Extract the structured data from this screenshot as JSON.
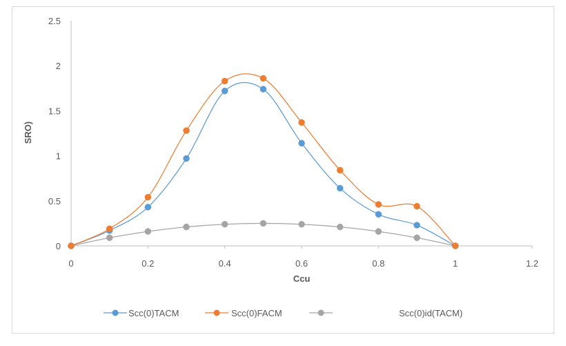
{
  "chart_data": {
    "type": "scatter",
    "title": "",
    "xlabel": "Ccu",
    "ylabel": "SRO)",
    "xlim": [
      0,
      1.2
    ],
    "ylim": [
      0,
      2.5
    ],
    "xticks": [
      "0",
      "0.2",
      "0.4",
      "0.6",
      "0.8",
      "1",
      "1.2"
    ],
    "yticks": [
      "0",
      "0.5",
      "1",
      "1.5",
      "2",
      "2.5"
    ],
    "grid": false,
    "legend_position": "bottom",
    "smoothed_lines": true,
    "series": [
      {
        "name": "Scc(0)TACM",
        "color": "#5b9bd5",
        "x": [
          0,
          0.1,
          0.2,
          0.3,
          0.4,
          0.5,
          0.6,
          0.7,
          0.8,
          0.9,
          1
        ],
        "y": [
          0,
          0.17,
          0.43,
          0.97,
          1.72,
          1.74,
          1.14,
          0.64,
          0.35,
          0.23,
          0
        ]
      },
      {
        "name": "Scc(0)FACM",
        "color": "#ed7d31",
        "x": [
          0,
          0.1,
          0.2,
          0.3,
          0.4,
          0.5,
          0.6,
          0.7,
          0.8,
          0.9,
          1
        ],
        "y": [
          0,
          0.19,
          0.54,
          1.28,
          1.83,
          1.86,
          1.37,
          0.84,
          0.46,
          0.44,
          0
        ]
      },
      {
        "name": "Scc(0)id(TACM)",
        "color": "#a5a5a5",
        "x": [
          0,
          0.1,
          0.2,
          0.3,
          0.4,
          0.5,
          0.6,
          0.7,
          0.8,
          0.9,
          1
        ],
        "y": [
          0,
          0.09,
          0.16,
          0.21,
          0.24,
          0.25,
          0.24,
          0.21,
          0.16,
          0.09,
          0
        ]
      }
    ]
  }
}
